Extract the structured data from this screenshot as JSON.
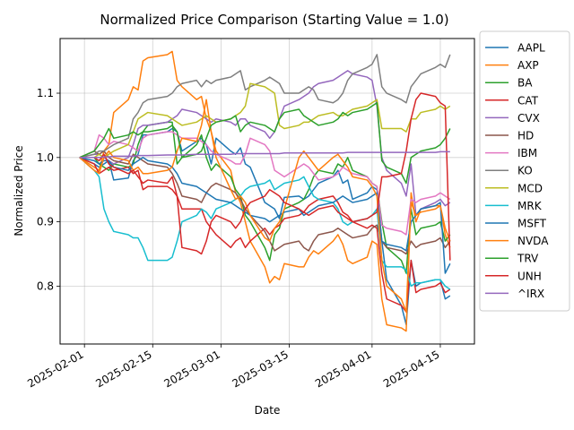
{
  "chart_data": {
    "type": "line",
    "title": "Normalized Price Comparison (Starting Value = 1.0)",
    "xlabel": "Date",
    "ylabel": "Normalized Price",
    "xlim": [
      "2025-01-27",
      "2025-04-22"
    ],
    "ylim": [
      0.71,
      1.185
    ],
    "x_ticks": [
      {
        "date": "2025-02-01",
        "label": "2025-02-01"
      },
      {
        "date": "2025-02-15",
        "label": "2025-02-15"
      },
      {
        "date": "2025-03-01",
        "label": "2025-03-01"
      },
      {
        "date": "2025-03-15",
        "label": "2025-03-15"
      },
      {
        "date": "2025-04-01",
        "label": "2025-04-01"
      },
      {
        "date": "2025-04-15",
        "label": "2025-04-15"
      }
    ],
    "y_ticks": [
      0.8,
      0.9,
      1.0,
      1.1
    ],
    "y_tick_labels": [
      "0.8",
      "0.9",
      "1.0",
      "1.1"
    ],
    "grid": true,
    "legend_position": "outside-right",
    "x": [
      "2025-01-31",
      "2025-02-03",
      "2025-02-04",
      "2025-02-05",
      "2025-02-06",
      "2025-02-07",
      "2025-02-10",
      "2025-02-11",
      "2025-02-12",
      "2025-02-13",
      "2025-02-14",
      "2025-02-18",
      "2025-02-19",
      "2025-02-20",
      "2025-02-21",
      "2025-02-24",
      "2025-02-25",
      "2025-02-26",
      "2025-02-27",
      "2025-02-28",
      "2025-03-03",
      "2025-03-04",
      "2025-03-05",
      "2025-03-06",
      "2025-03-07",
      "2025-03-10",
      "2025-03-11",
      "2025-03-12",
      "2025-03-13",
      "2025-03-14",
      "2025-03-17",
      "2025-03-18",
      "2025-03-19",
      "2025-03-20",
      "2025-03-21",
      "2025-03-24",
      "2025-03-25",
      "2025-03-26",
      "2025-03-27",
      "2025-03-28",
      "2025-03-31",
      "2025-04-01",
      "2025-04-02",
      "2025-04-03",
      "2025-04-04",
      "2025-04-07",
      "2025-04-08",
      "2025-04-09",
      "2025-04-10",
      "2025-04-11",
      "2025-04-14",
      "2025-04-15",
      "2025-04-16",
      "2025-04-17"
    ],
    "series": [
      {
        "name": "AAPL",
        "color": "#1f77b4",
        "values": [
          1.0,
          0.99,
          0.985,
          0.99,
          0.995,
          0.965,
          0.968,
          0.995,
          1.005,
          1.035,
          1.035,
          1.04,
          1.045,
          1.04,
          1.01,
          1.025,
          1.03,
          1.02,
          0.99,
          1.03,
          1.01,
          1.005,
          1.015,
          0.99,
          0.985,
          0.93,
          0.925,
          0.92,
          0.905,
          0.938,
          0.94,
          0.935,
          0.94,
          0.95,
          0.96,
          0.97,
          0.98,
          0.96,
          0.965,
          0.935,
          0.945,
          0.955,
          0.95,
          0.87,
          0.81,
          0.77,
          0.74,
          0.84,
          0.8,
          0.805,
          0.81,
          0.81,
          0.78,
          0.785
        ]
      },
      {
        "name": "AXP",
        "color": "#ff7f0e",
        "values": [
          1.0,
          0.985,
          0.98,
          1.01,
          1.02,
          1.07,
          1.09,
          1.11,
          1.105,
          1.15,
          1.155,
          1.16,
          1.165,
          1.12,
          1.11,
          1.09,
          1.095,
          1.06,
          1.04,
          1.01,
          0.98,
          0.945,
          0.93,
          0.9,
          0.87,
          0.83,
          0.805,
          0.815,
          0.81,
          0.835,
          0.83,
          0.83,
          0.845,
          0.855,
          0.85,
          0.87,
          0.88,
          0.865,
          0.84,
          0.835,
          0.845,
          0.87,
          0.865,
          0.78,
          0.74,
          0.735,
          0.73,
          0.945,
          0.9,
          0.92,
          0.925,
          0.925,
          0.88,
          0.86
        ]
      },
      {
        "name": "BA",
        "color": "#2ca02c",
        "values": [
          1.0,
          1.0,
          0.99,
          0.985,
          0.98,
          0.99,
          0.985,
          0.99,
          1.02,
          1.04,
          1.05,
          1.055,
          1.055,
          0.99,
          1.0,
          1.02,
          1.035,
          1.0,
          0.98,
          0.99,
          0.97,
          0.95,
          0.94,
          0.91,
          0.9,
          0.86,
          0.84,
          0.88,
          0.89,
          0.92,
          0.93,
          0.935,
          0.95,
          0.97,
          0.98,
          0.975,
          0.99,
          0.985,
          1.0,
          0.98,
          0.97,
          0.96,
          0.955,
          0.9,
          0.86,
          0.84,
          0.82,
          0.92,
          0.88,
          0.89,
          0.895,
          0.9,
          0.87,
          0.88
        ]
      },
      {
        "name": "CAT",
        "color": "#d62728",
        "values": [
          1.0,
          0.99,
          0.975,
          0.98,
          0.985,
          0.98,
          0.985,
          0.975,
          0.98,
          0.95,
          0.955,
          0.955,
          0.95,
          0.94,
          0.92,
          0.92,
          0.92,
          0.9,
          0.89,
          0.88,
          0.86,
          0.87,
          0.875,
          0.86,
          0.87,
          0.89,
          0.88,
          0.89,
          0.895,
          0.905,
          0.91,
          0.915,
          0.925,
          0.93,
          0.935,
          0.94,
          0.93,
          0.915,
          0.91,
          0.9,
          0.89,
          0.895,
          0.89,
          0.82,
          0.78,
          0.77,
          0.76,
          0.84,
          0.79,
          0.795,
          0.8,
          0.805,
          0.79,
          0.795
        ]
      },
      {
        "name": "CVX",
        "color": "#9467bd",
        "values": [
          1.0,
          1.005,
          1.005,
          1.0,
          0.995,
          0.99,
          1.0,
          1.02,
          1.045,
          1.05,
          1.05,
          1.055,
          1.06,
          1.065,
          1.075,
          1.07,
          1.065,
          1.06,
          1.055,
          1.06,
          1.055,
          1.05,
          1.06,
          1.06,
          1.05,
          1.04,
          1.03,
          1.04,
          1.06,
          1.08,
          1.09,
          1.095,
          1.1,
          1.11,
          1.115,
          1.12,
          1.125,
          1.13,
          1.135,
          1.13,
          1.125,
          1.12,
          1.08,
          1.0,
          0.98,
          0.96,
          0.94,
          0.99,
          0.91,
          0.92,
          0.93,
          0.935,
          0.925,
          0.93
        ]
      },
      {
        "name": "HD",
        "color": "#8c564b",
        "values": [
          1.0,
          1.01,
          1.005,
          1.01,
          1.0,
          0.995,
          0.99,
          1.005,
          1.0,
          0.995,
          0.99,
          0.985,
          0.975,
          0.96,
          0.94,
          0.935,
          0.93,
          0.945,
          0.955,
          0.96,
          0.95,
          0.945,
          0.935,
          0.92,
          0.91,
          0.885,
          0.87,
          0.855,
          0.86,
          0.865,
          0.87,
          0.86,
          0.855,
          0.87,
          0.88,
          0.885,
          0.89,
          0.885,
          0.88,
          0.875,
          0.88,
          0.89,
          0.895,
          0.87,
          0.86,
          0.855,
          0.85,
          0.87,
          0.86,
          0.865,
          0.87,
          0.875,
          0.86,
          0.87
        ]
      },
      {
        "name": "IBM",
        "color": "#e377c2",
        "values": [
          1.0,
          1.01,
          1.035,
          1.03,
          1.02,
          1.025,
          1.02,
          1.015,
          1.01,
          1.03,
          1.035,
          1.04,
          1.04,
          1.035,
          1.03,
          1.03,
          1.025,
          1.02,
          1.01,
          1.005,
          0.995,
          0.99,
          0.99,
          1.005,
          1.03,
          1.02,
          1.01,
          0.98,
          0.975,
          0.97,
          0.985,
          0.99,
          0.985,
          0.975,
          0.965,
          0.97,
          0.975,
          0.985,
          0.98,
          0.975,
          0.97,
          0.96,
          0.955,
          0.895,
          0.89,
          0.885,
          0.88,
          0.935,
          0.93,
          0.935,
          0.94,
          0.945,
          0.94,
          0.935
        ]
      },
      {
        "name": "KO",
        "color": "#7f7f7f",
        "values": [
          1.0,
          1.005,
          1.01,
          1.01,
          1.015,
          1.02,
          1.03,
          1.06,
          1.07,
          1.085,
          1.09,
          1.095,
          1.1,
          1.11,
          1.115,
          1.12,
          1.11,
          1.12,
          1.115,
          1.12,
          1.125,
          1.13,
          1.135,
          1.105,
          1.11,
          1.12,
          1.125,
          1.12,
          1.115,
          1.1,
          1.1,
          1.105,
          1.11,
          1.105,
          1.09,
          1.085,
          1.09,
          1.1,
          1.12,
          1.13,
          1.14,
          1.145,
          1.16,
          1.11,
          1.1,
          1.09,
          1.085,
          1.11,
          1.12,
          1.13,
          1.14,
          1.145,
          1.14,
          1.16
        ]
      },
      {
        "name": "MCD",
        "color": "#bcbd22",
        "values": [
          1.0,
          1.0,
          1.005,
          1.0,
          1.005,
          1.01,
          1.02,
          1.04,
          1.06,
          1.065,
          1.07,
          1.065,
          1.06,
          1.055,
          1.05,
          1.055,
          1.06,
          1.065,
          1.06,
          1.055,
          1.06,
          1.065,
          1.07,
          1.08,
          1.115,
          1.11,
          1.105,
          1.1,
          1.05,
          1.045,
          1.05,
          1.055,
          1.055,
          1.06,
          1.065,
          1.07,
          1.065,
          1.065,
          1.07,
          1.075,
          1.08,
          1.085,
          1.09,
          1.045,
          1.045,
          1.045,
          1.04,
          1.06,
          1.06,
          1.07,
          1.075,
          1.08,
          1.075,
          1.08
        ]
      },
      {
        "name": "MRK",
        "color": "#17becf",
        "values": [
          1.0,
          0.98,
          0.97,
          0.92,
          0.9,
          0.885,
          0.88,
          0.875,
          0.875,
          0.86,
          0.84,
          0.84,
          0.845,
          0.87,
          0.9,
          0.91,
          0.92,
          0.915,
          0.905,
          0.92,
          0.93,
          0.935,
          0.94,
          0.95,
          0.955,
          0.96,
          0.965,
          0.95,
          0.955,
          0.96,
          0.965,
          0.97,
          0.955,
          0.94,
          0.935,
          0.93,
          0.92,
          0.9,
          0.895,
          0.9,
          0.905,
          0.91,
          0.92,
          0.84,
          0.83,
          0.83,
          0.825,
          0.8,
          0.805,
          0.805,
          0.81,
          0.81,
          0.8,
          0.795
        ]
      },
      {
        "name": "MSFT",
        "color": "#1f77b4",
        "values": [
          1.0,
          0.995,
          0.99,
          0.995,
          0.995,
          0.985,
          0.98,
          0.99,
          0.995,
          1.0,
          0.995,
          0.99,
          0.985,
          0.975,
          0.96,
          0.955,
          0.95,
          0.945,
          0.94,
          0.935,
          0.93,
          0.925,
          0.92,
          0.915,
          0.91,
          0.905,
          0.9,
          0.905,
          0.91,
          0.915,
          0.92,
          0.91,
          0.915,
          0.92,
          0.925,
          0.93,
          0.935,
          0.94,
          0.935,
          0.93,
          0.935,
          0.94,
          0.945,
          0.87,
          0.865,
          0.86,
          0.855,
          0.9,
          0.91,
          0.92,
          0.925,
          0.93,
          0.82,
          0.835
        ]
      },
      {
        "name": "NVDA",
        "color": "#ff7f0e",
        "values": [
          1.0,
          0.98,
          0.975,
          1.0,
          1.01,
          1.0,
          0.995,
          0.98,
          0.985,
          0.975,
          0.975,
          0.98,
          0.985,
          1.01,
          1.03,
          1.025,
          1.05,
          1.09,
          1.04,
          1.0,
          0.95,
          0.935,
          0.94,
          0.93,
          0.91,
          0.875,
          0.87,
          0.89,
          0.9,
          0.92,
          1.0,
          1.01,
          1.0,
          0.99,
          0.98,
          1.0,
          1.005,
          0.995,
          0.985,
          0.97,
          0.965,
          0.955,
          0.94,
          0.84,
          0.8,
          0.78,
          0.76,
          0.93,
          0.91,
          0.915,
          0.92,
          0.925,
          0.89,
          0.87
        ]
      },
      {
        "name": "TRV",
        "color": "#2ca02c",
        "values": [
          1.0,
          1.01,
          1.02,
          1.03,
          1.045,
          1.03,
          1.035,
          1.04,
          1.035,
          1.04,
          1.04,
          1.045,
          1.05,
          1.04,
          1.0,
          1.005,
          1.01,
          1.03,
          1.05,
          1.055,
          1.06,
          1.065,
          1.04,
          1.05,
          1.055,
          1.05,
          1.045,
          1.04,
          1.06,
          1.07,
          1.075,
          1.065,
          1.06,
          1.055,
          1.05,
          1.055,
          1.06,
          1.07,
          1.065,
          1.07,
          1.075,
          1.08,
          1.085,
          0.995,
          0.985,
          0.975,
          0.96,
          1.0,
          1.005,
          1.01,
          1.015,
          1.02,
          1.03,
          1.045
        ]
      },
      {
        "name": "UNH",
        "color": "#d62728",
        "values": [
          1.0,
          1.0,
          0.995,
          1.005,
          0.99,
          0.985,
          0.975,
          0.98,
          0.97,
          0.96,
          0.965,
          0.96,
          0.97,
          0.94,
          0.86,
          0.855,
          0.85,
          0.87,
          0.9,
          0.91,
          0.9,
          0.89,
          0.9,
          0.92,
          0.93,
          0.94,
          0.95,
          0.945,
          0.94,
          0.93,
          0.92,
          0.915,
          0.91,
          0.915,
          0.92,
          0.925,
          0.915,
          0.91,
          0.905,
          0.9,
          0.905,
          0.91,
          0.915,
          0.97,
          0.97,
          0.975,
          1.01,
          1.06,
          1.09,
          1.1,
          1.095,
          1.085,
          1.08,
          0.84
        ]
      },
      {
        "name": "^IRX",
        "color": "#9467bd",
        "values": [
          1.0,
          1.0,
          1.0,
          1.001,
          1.001,
          1.002,
          1.002,
          1.002,
          1.003,
          1.003,
          1.003,
          1.004,
          1.004,
          1.004,
          1.004,
          1.005,
          1.005,
          1.005,
          1.005,
          1.005,
          1.005,
          1.006,
          1.006,
          1.006,
          1.006,
          1.006,
          1.006,
          1.006,
          1.006,
          1.007,
          1.007,
          1.007,
          1.007,
          1.007,
          1.007,
          1.007,
          1.007,
          1.007,
          1.008,
          1.008,
          1.008,
          1.008,
          1.008,
          1.008,
          1.008,
          1.008,
          1.008,
          1.008,
          1.008,
          1.008,
          1.008,
          1.009,
          1.009,
          1.009
        ]
      }
    ]
  }
}
